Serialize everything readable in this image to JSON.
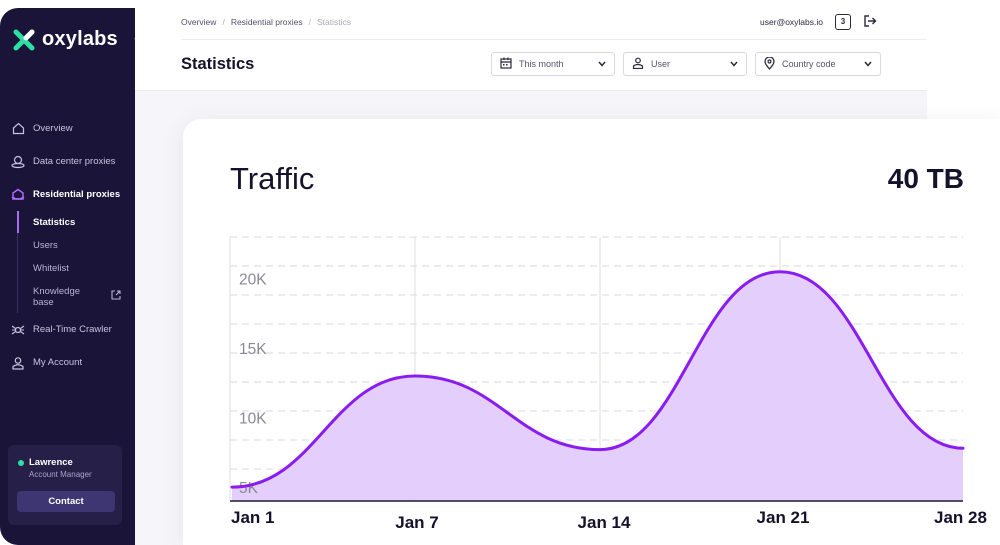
{
  "brand": {
    "name": "oxylabs"
  },
  "sidebar": {
    "items": [
      {
        "label": "Overview",
        "icon": "home-icon"
      },
      {
        "label": "Data center proxies",
        "icon": "datacenter-icon"
      },
      {
        "label": "Residential proxies",
        "icon": "residential-icon",
        "active": true
      },
      {
        "label": "Real-Time Crawler",
        "icon": "crawler-icon"
      },
      {
        "label": "My Account",
        "icon": "account-icon"
      }
    ],
    "subitems": [
      {
        "label": "Statistics",
        "active": true
      },
      {
        "label": "Users"
      },
      {
        "label": "Whitelist"
      },
      {
        "label": "Knowledge base",
        "icon": "external-link-icon"
      }
    ],
    "account_manager": {
      "name": "Lawrence",
      "role": "Account Manager",
      "contact_label": "Contact",
      "status_color": "#2de0a5"
    }
  },
  "header": {
    "breadcrumb": [
      "Overview",
      "Residential proxies",
      "Statistics"
    ],
    "email": "user@oxylabs.io",
    "notification_count": "3",
    "title": "Statistics",
    "filters": {
      "period": "This month",
      "user": "User",
      "country": "Country code"
    }
  },
  "card": {
    "title": "Traffic",
    "total": "40 TB"
  },
  "colors": {
    "sidebar_bg": "#1a1438",
    "accent": "#8a1cf2",
    "area_fill": "#e3ccfc",
    "logo_green": "#2de0a5"
  },
  "chart_data": {
    "type": "area",
    "x": [
      "Jan 1",
      "Jan 7",
      "Jan 14",
      "Jan 21",
      "Jan 28"
    ],
    "series": [
      {
        "x": [
          "Jan 1",
          "Jan 7",
          "Jan 14",
          "Jan 21",
          "Jan 28"
        ],
        "values": [
          5000,
          13000,
          7700,
          20500,
          7800
        ]
      }
    ],
    "y_ticks": [
      "20K",
      "15K",
      "10K",
      "5K"
    ],
    "y_tick_values": [
      20000,
      15000,
      10000,
      5000
    ],
    "ylim": [
      4000,
      23000
    ],
    "grid": true
  }
}
